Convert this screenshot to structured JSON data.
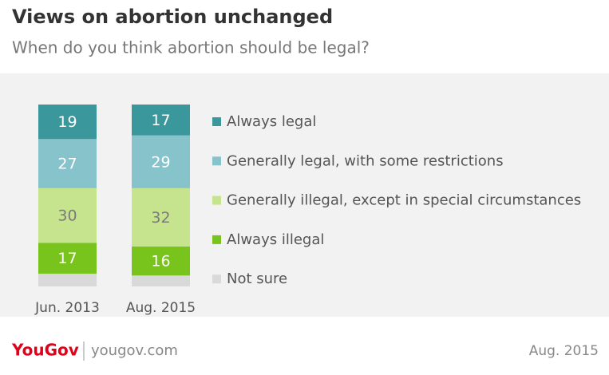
{
  "chart_data": {
    "type": "stacked_bar",
    "title": "Views on abortion unchanged",
    "subtitle": "When do you think abortion should be legal?",
    "categories": [
      "Jun. 2013",
      "Aug. 2015"
    ],
    "series": [
      {
        "name": "Always legal",
        "color": "#3a979c",
        "label_color": "#ffffff",
        "values": [
          19,
          17
        ]
      },
      {
        "name": "Generally legal, with some restrictions",
        "color": "#86c3cb",
        "label_color": "#ffffff",
        "values": [
          27,
          29
        ]
      },
      {
        "name": "Generally illegal, except in special circumstances",
        "color": "#c6e48e",
        "label_color": "#7a7a7a",
        "values": [
          30,
          32
        ]
      },
      {
        "name": "Always illegal",
        "color": "#78c41d",
        "label_color": "#ffffff",
        "values": [
          17,
          16
        ]
      },
      {
        "name": "Not sure",
        "color": "#d9d9d9",
        "data_labels": false,
        "values": [
          7,
          6
        ]
      }
    ],
    "ylim": [
      0,
      100
    ],
    "footer": {
      "brand": "YouGov",
      "site": "yougov.com",
      "date": "Aug. 2015"
    }
  }
}
